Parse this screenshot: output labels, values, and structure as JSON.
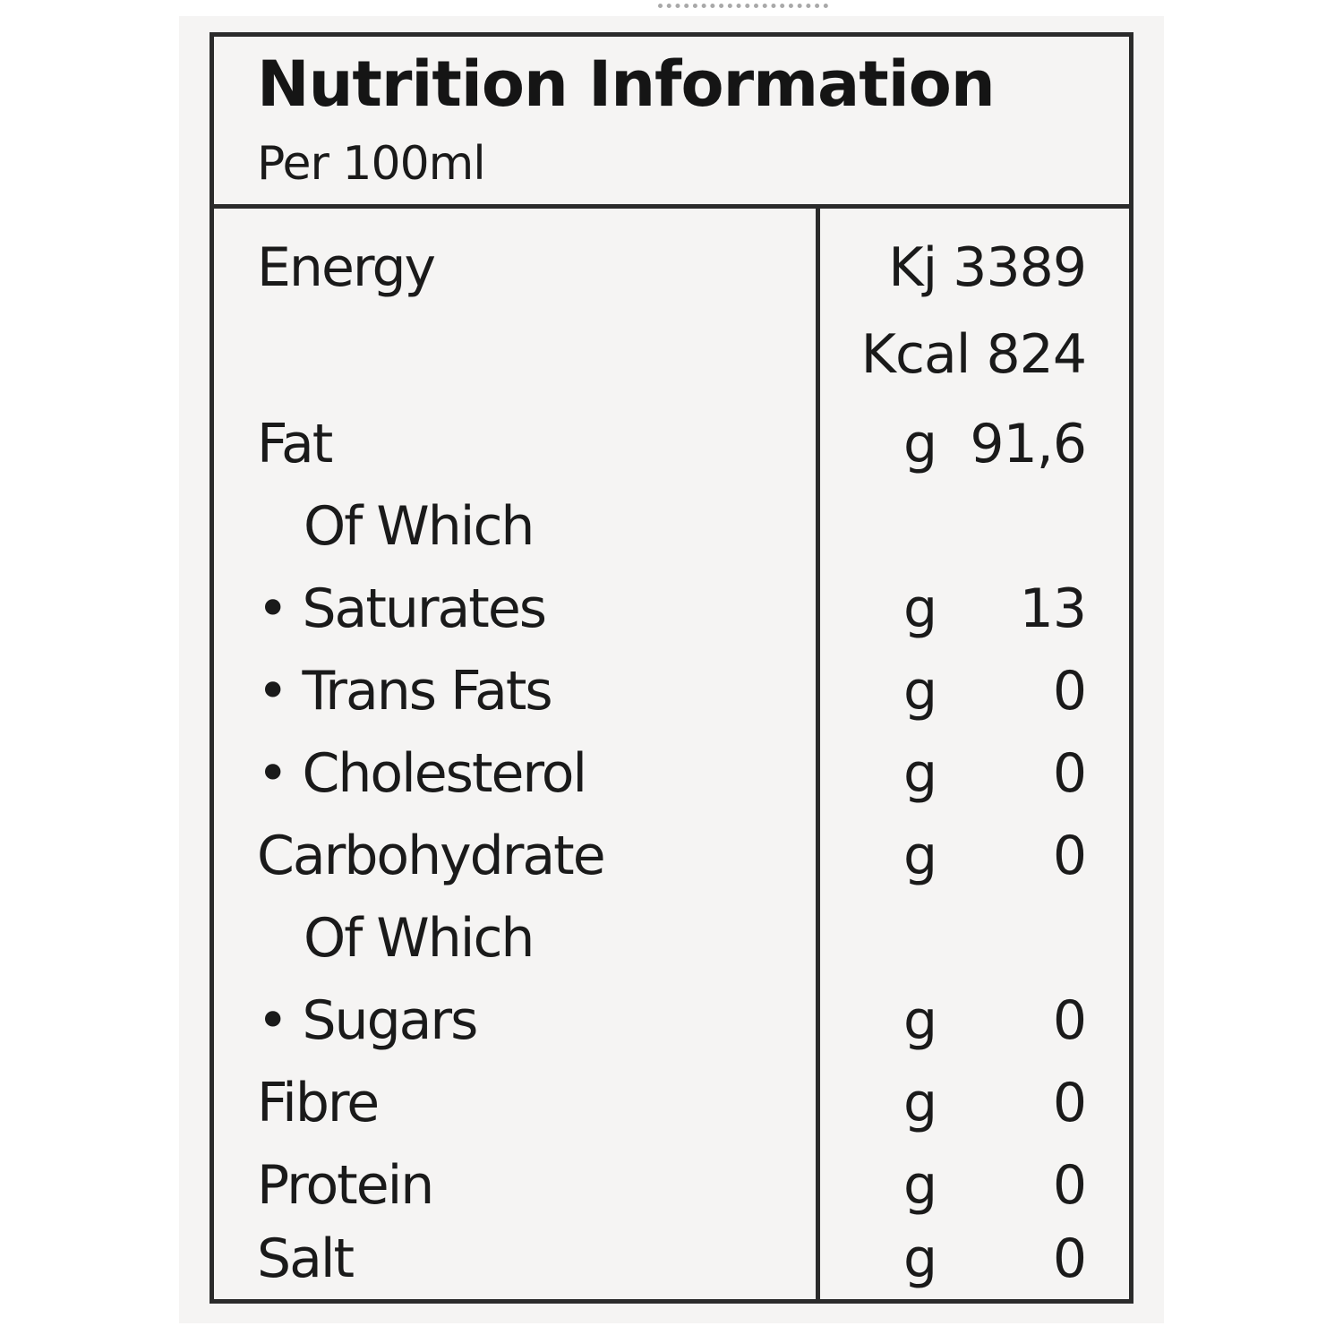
{
  "label": {
    "title": "Nutrition Information",
    "basis": "Per 100ml",
    "rows": [
      {
        "name": "Energy",
        "unit": "",
        "amount": "Kj 3389"
      },
      {
        "name": "",
        "unit": "",
        "amount": "Kcal 824"
      },
      {
        "name": "Fat",
        "unit": "g",
        "amount": "91,6"
      },
      {
        "name": "Of Which",
        "unit": "",
        "amount": ""
      },
      {
        "name": "• Saturates",
        "unit": "g",
        "amount": "13"
      },
      {
        "name": "• Trans Fats",
        "unit": "g",
        "amount": "0"
      },
      {
        "name": "• Cholesterol",
        "unit": "g",
        "amount": "0"
      },
      {
        "name": "Carbohydrate",
        "unit": "g",
        "amount": "0"
      },
      {
        "name": "Of Which",
        "unit": "",
        "amount": ""
      },
      {
        "name": "• Sugars",
        "unit": "g",
        "amount": "0"
      },
      {
        "name": "Fibre",
        "unit": "g",
        "amount": "0"
      },
      {
        "name": "Protein",
        "unit": "g",
        "amount": "0"
      },
      {
        "name": "Salt",
        "unit": "g",
        "amount": "0"
      }
    ]
  }
}
